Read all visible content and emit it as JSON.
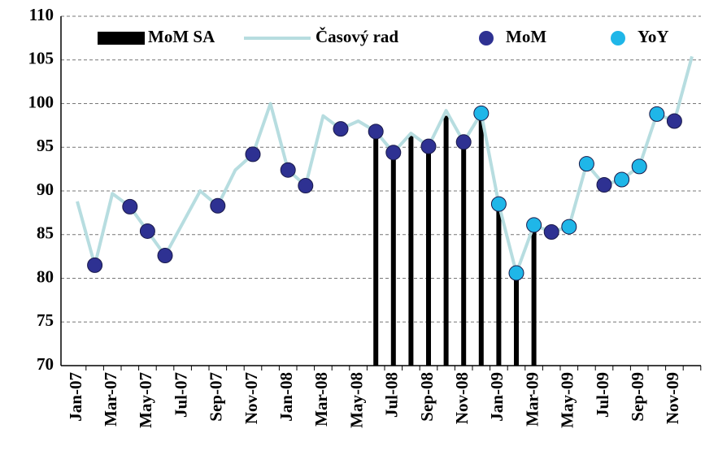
{
  "chart_data": {
    "type": "combo",
    "categories": [
      "Jan-07",
      null,
      "Mar-07",
      null,
      "May-07",
      null,
      "Jul-07",
      null,
      "Sep-07",
      null,
      "Nov-07",
      null,
      "Jan-08",
      null,
      "Mar-08",
      null,
      "May-08",
      null,
      "Jul-08",
      null,
      "Sep-08",
      null,
      "Nov-08",
      null,
      "Jan-09",
      null,
      "Mar-09",
      null,
      "May-09",
      null,
      "Jul-09",
      null,
      "Sep-09",
      null,
      "Nov-09",
      null
    ],
    "series": [
      {
        "name": "MoM SA",
        "type": "bar",
        "color": "#000000",
        "values": [
          null,
          null,
          null,
          null,
          null,
          null,
          null,
          null,
          null,
          null,
          null,
          null,
          null,
          null,
          null,
          null,
          null,
          96.8,
          94.4,
          96.3,
          95.1,
          98.6,
          95.6,
          98.5,
          88.5,
          80.6,
          86.1,
          null,
          null,
          null,
          null,
          null,
          null,
          null,
          null,
          null
        ]
      },
      {
        "name": "Časový rad",
        "type": "line",
        "color": "#b7dde0",
        "values": [
          88.8,
          81.5,
          89.7,
          88.2,
          85.4,
          82.6,
          86.3,
          90.0,
          88.3,
          92.4,
          94.2,
          100.0,
          92.4,
          90.6,
          98.6,
          97.1,
          98.0,
          96.8,
          94.4,
          96.6,
          95.1,
          99.2,
          95.6,
          98.9,
          88.5,
          80.6,
          86.1,
          85.3,
          85.9,
          93.1,
          90.7,
          91.3,
          92.8,
          98.8,
          98.0,
          105.4
        ]
      },
      {
        "name": "MoM",
        "type": "scatter",
        "color": "#2e3192",
        "values": [
          null,
          81.5,
          null,
          88.2,
          85.4,
          82.6,
          null,
          null,
          88.3,
          null,
          94.2,
          null,
          92.4,
          90.6,
          null,
          97.1,
          null,
          96.8,
          94.4,
          null,
          95.1,
          null,
          95.6,
          null,
          null,
          null,
          null,
          85.3,
          null,
          null,
          90.7,
          null,
          null,
          null,
          98.0,
          null
        ]
      },
      {
        "name": "YoY",
        "type": "scatter",
        "color": "#1fb6e8",
        "values": [
          null,
          null,
          null,
          null,
          null,
          null,
          null,
          null,
          null,
          null,
          null,
          null,
          null,
          null,
          null,
          null,
          null,
          null,
          null,
          null,
          null,
          null,
          null,
          98.9,
          88.5,
          80.6,
          86.1,
          null,
          85.9,
          93.1,
          null,
          91.3,
          92.8,
          98.8,
          null,
          null
        ]
      }
    ],
    "ylim": [
      70,
      110
    ],
    "yticks": [
      70,
      75,
      80,
      85,
      90,
      95,
      100,
      105,
      110
    ],
    "grid": true,
    "legend": "top"
  }
}
